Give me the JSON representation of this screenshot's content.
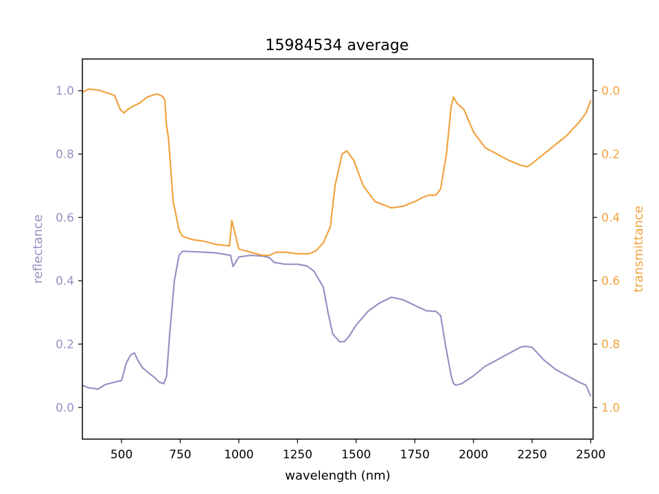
{
  "chart_data": {
    "type": "line",
    "title": "15984534 average",
    "xlabel": "wavelength (nm)",
    "xlim": [
      333,
      2510
    ],
    "x_ticks": [
      500,
      750,
      1000,
      1250,
      1500,
      1750,
      2000,
      2250,
      2500
    ],
    "grid": false,
    "series": [
      {
        "name": "reflectance",
        "axis": "left",
        "color": "#9591c4",
        "x": [
          333,
          360,
          400,
          430,
          470,
          500,
          520,
          540,
          555,
          570,
          590,
          610,
          640,
          660,
          680,
          692,
          705,
          725,
          745,
          760,
          800,
          900,
          965,
          975,
          1000,
          1050,
          1100,
          1130,
          1150,
          1200,
          1250,
          1290,
          1320,
          1360,
          1380,
          1400,
          1430,
          1450,
          1470,
          1500,
          1550,
          1600,
          1650,
          1700,
          1750,
          1800,
          1840,
          1860,
          1880,
          1895,
          1905,
          1915,
          1925,
          1950,
          2000,
          2050,
          2100,
          2150,
          2200,
          2220,
          2250,
          2300,
          2350,
          2400,
          2450,
          2480,
          2500
        ],
        "y": [
          0.07,
          0.062,
          0.058,
          0.072,
          0.08,
          0.085,
          0.14,
          0.167,
          0.172,
          0.148,
          0.125,
          0.112,
          0.095,
          0.08,
          0.075,
          0.1,
          0.23,
          0.4,
          0.48,
          0.493,
          0.492,
          0.488,
          0.48,
          0.445,
          0.475,
          0.48,
          0.478,
          0.473,
          0.458,
          0.452,
          0.452,
          0.447,
          0.43,
          0.38,
          0.3,
          0.232,
          0.207,
          0.208,
          0.225,
          0.26,
          0.303,
          0.33,
          0.348,
          0.34,
          0.322,
          0.305,
          0.303,
          0.29,
          0.2,
          0.14,
          0.1,
          0.075,
          0.07,
          0.075,
          0.1,
          0.13,
          0.15,
          0.17,
          0.19,
          0.193,
          0.19,
          0.15,
          0.12,
          0.1,
          0.08,
          0.07,
          0.035
        ]
      },
      {
        "name": "transmittance",
        "axis": "right",
        "color": "#f0a23e",
        "x": [
          333,
          360,
          400,
          430,
          470,
          495,
          510,
          525,
          545,
          575,
          610,
          650,
          675,
          685,
          690,
          700,
          720,
          745,
          760,
          800,
          850,
          900,
          960,
          970,
          1000,
          1050,
          1100,
          1130,
          1160,
          1200,
          1250,
          1300,
          1330,
          1360,
          1390,
          1410,
          1440,
          1460,
          1490,
          1530,
          1580,
          1650,
          1700,
          1750,
          1790,
          1810,
          1840,
          1860,
          1885,
          1905,
          1915,
          1930,
          1960,
          2000,
          2050,
          2100,
          2150,
          2200,
          2230,
          2250,
          2300,
          2350,
          2400,
          2450,
          2480,
          2500
        ],
        "y": [
          0.005,
          -0.005,
          -0.002,
          0.005,
          0.015,
          0.06,
          0.07,
          0.06,
          0.05,
          0.04,
          0.02,
          0.01,
          0.018,
          0.03,
          0.1,
          0.15,
          0.35,
          0.44,
          0.46,
          0.47,
          0.475,
          0.485,
          0.49,
          0.41,
          0.5,
          0.51,
          0.52,
          0.52,
          0.51,
          0.51,
          0.515,
          0.515,
          0.505,
          0.48,
          0.43,
          0.3,
          0.2,
          0.19,
          0.22,
          0.3,
          0.35,
          0.37,
          0.365,
          0.35,
          0.335,
          0.33,
          0.33,
          0.31,
          0.2,
          0.05,
          0.02,
          0.04,
          0.06,
          0.13,
          0.18,
          0.2,
          0.22,
          0.235,
          0.24,
          0.23,
          0.2,
          0.17,
          0.14,
          0.1,
          0.07,
          0.03
        ]
      }
    ],
    "y_axes": {
      "left": {
        "label": "reflectance",
        "lim": [
          -0.1,
          1.1
        ],
        "ticks": [
          0.0,
          0.2,
          0.4,
          0.6,
          0.8,
          1.0
        ],
        "tick_labels": [
          "0.0",
          "0.2",
          "0.4",
          "0.6",
          "0.8",
          "1.0"
        ],
        "color": "#9591c4"
      },
      "right": {
        "label": "transmittance",
        "lim": [
          1.1,
          -0.1
        ],
        "inverted": true,
        "ticks": [
          0.0,
          0.2,
          0.4,
          0.6,
          0.8,
          1.0
        ],
        "tick_labels": [
          "0.0",
          "0.2",
          "0.4",
          "0.6",
          "0.8",
          "1.0"
        ],
        "color": "#f0a23e"
      }
    }
  }
}
